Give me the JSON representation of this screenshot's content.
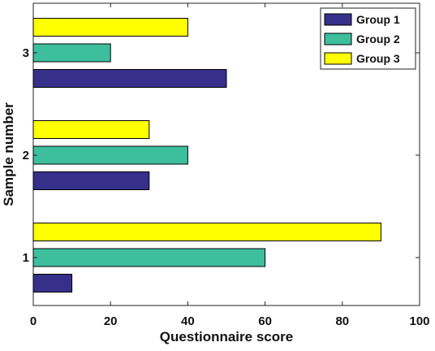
{
  "chart_data": {
    "type": "bar",
    "orientation": "horizontal",
    "categories": [
      "1",
      "2",
      "3"
    ],
    "series": [
      {
        "name": "Group 1",
        "values": [
          10,
          30,
          50
        ],
        "color": "#37308a"
      },
      {
        "name": "Group 2",
        "values": [
          60,
          40,
          20
        ],
        "color": "#3dbf9d"
      },
      {
        "name": "Group 3",
        "values": [
          90,
          30,
          40
        ],
        "color": "#ffff00"
      }
    ],
    "xlabel": "Questionnaire score",
    "ylabel": "Sample number",
    "xlim": [
      0,
      100
    ],
    "xticks": [
      "0",
      "20",
      "40",
      "60",
      "80",
      "100"
    ],
    "grid": false,
    "legend_position": "top-right"
  }
}
